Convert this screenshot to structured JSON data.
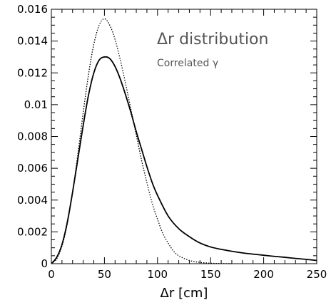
{
  "chart_data": {
    "type": "line",
    "title": "",
    "xlabel": "Δr [cm]",
    "ylabel": "",
    "xlim": [
      0,
      250
    ],
    "ylim": [
      0,
      0.016
    ],
    "grid": false,
    "legend": "none",
    "x_ticks": [
      0,
      50,
      100,
      150,
      200,
      250
    ],
    "x_tick_labels": [
      "0",
      "50",
      "100",
      "150",
      "200",
      "250"
    ],
    "y_ticks": [
      0,
      0.002,
      0.004,
      0.006,
      0.008,
      0.01,
      0.012,
      0.014,
      0.016
    ],
    "y_tick_labels": [
      "0",
      "0.002",
      "0.004",
      "0.006",
      "0.008",
      "0.01",
      "0.012",
      "0.014",
      "0.016"
    ],
    "annotations": [
      {
        "text": "Δr distribution",
        "style": "title"
      },
      {
        "text": "Correlated γ",
        "style": "subtitle"
      }
    ],
    "series": [
      {
        "style": "solid",
        "color": "#000000",
        "x": [
          0,
          5,
          10,
          15,
          20,
          25,
          30,
          35,
          40,
          45,
          50,
          55,
          60,
          65,
          70,
          75,
          80,
          85,
          90,
          95,
          100,
          110,
          120,
          130,
          140,
          150,
          160,
          170,
          180,
          190,
          200,
          210,
          220,
          230,
          240,
          250
        ],
        "y": [
          0,
          0.0004,
          0.0012,
          0.0026,
          0.0045,
          0.0066,
          0.0087,
          0.0106,
          0.012,
          0.0128,
          0.013,
          0.0129,
          0.0124,
          0.0116,
          0.0106,
          0.0095,
          0.0083,
          0.0072,
          0.0061,
          0.0051,
          0.0043,
          0.003,
          0.0022,
          0.0017,
          0.0013,
          0.00105,
          0.0009,
          0.00078,
          0.00068,
          0.0006,
          0.00053,
          0.00046,
          0.0004,
          0.00033,
          0.00027,
          0.0002
        ]
      },
      {
        "style": "dotted",
        "color": "#000000",
        "x": [
          0,
          5,
          10,
          15,
          20,
          25,
          30,
          35,
          40,
          45,
          50,
          55,
          60,
          65,
          70,
          75,
          80,
          85,
          90,
          95,
          100,
          105,
          110,
          115,
          120,
          130,
          140,
          150,
          160,
          170
        ],
        "y": [
          0,
          0.0003,
          0.0011,
          0.0025,
          0.0045,
          0.0069,
          0.0095,
          0.0119,
          0.0138,
          0.015,
          0.0154,
          0.015,
          0.0141,
          0.0128,
          0.0113,
          0.0097,
          0.0081,
          0.0065,
          0.0051,
          0.0038,
          0.0028,
          0.0019,
          0.0013,
          0.0008,
          0.0005,
          0.0002,
          8e-05,
          3e-05,
          1e-05,
          0
        ]
      }
    ]
  }
}
